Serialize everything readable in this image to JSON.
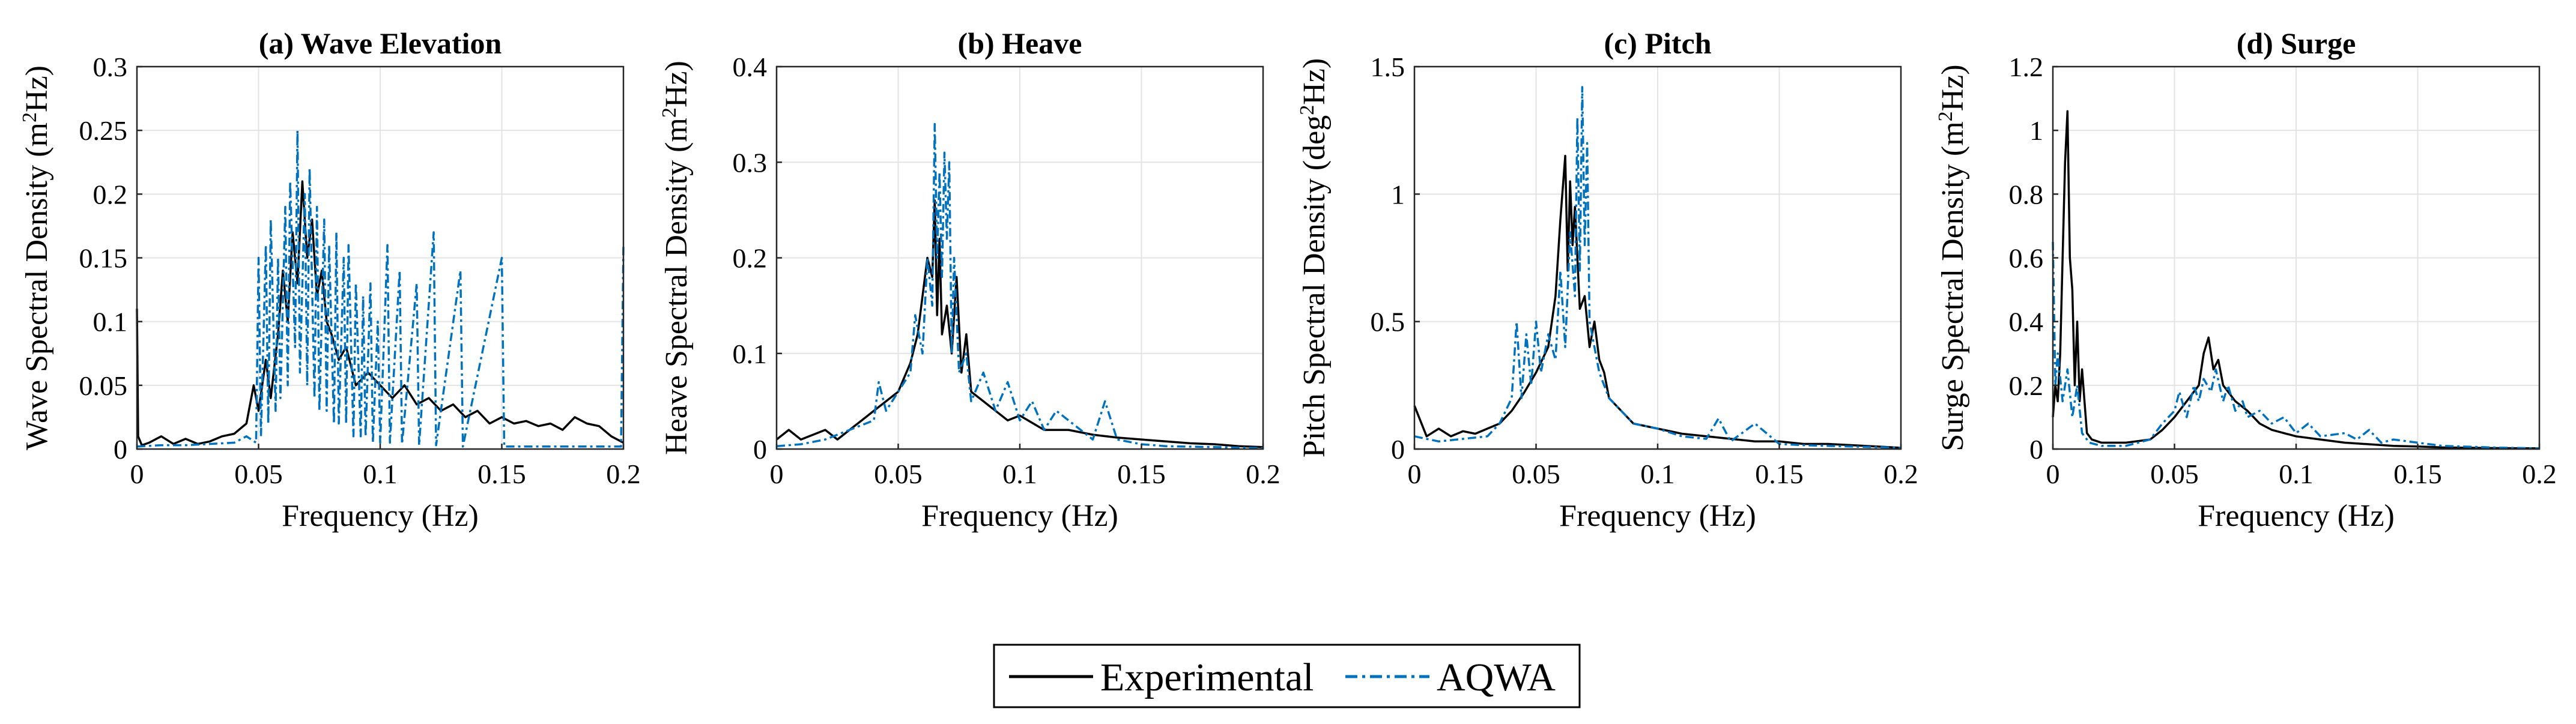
{
  "figure": {
    "legend": {
      "entries": [
        {
          "label": "Experimental",
          "color": "#000000",
          "style": "solid"
        },
        {
          "label": "AQWA",
          "color": "#0072BD",
          "style": "dash-dot"
        }
      ]
    }
  },
  "chart_data": [
    {
      "type": "line",
      "title": "(a) Wave Elevation",
      "xlabel": "Frequency (Hz)",
      "ylabel_main": "Wave Spectral Density (m",
      "ylabel_sup": "2",
      "ylabel_end": "Hz)",
      "xlim": [
        0,
        0.2
      ],
      "ylim": [
        0,
        0.3
      ],
      "xticks": [
        0,
        0.05,
        0.1,
        0.15,
        0.2
      ],
      "xtick_labels": [
        "0",
        "0.05",
        "0.1",
        "0.15",
        "0.2"
      ],
      "yticks": [
        0,
        0.05,
        0.1,
        0.15,
        0.2,
        0.25,
        0.3
      ],
      "ytick_labels": [
        "0",
        "0.05",
        "0.1",
        "0.15",
        "0.2",
        "0.25",
        "0.3"
      ],
      "grid": true,
      "series": [
        {
          "name": "Experimental",
          "color": "#000000",
          "x": [
            0,
            0.0005,
            0.002,
            0.005,
            0.01,
            0.015,
            0.02,
            0.025,
            0.03,
            0.035,
            0.04,
            0.045,
            0.048,
            0.05,
            0.053,
            0.055,
            0.058,
            0.06,
            0.062,
            0.064,
            0.066,
            0.068,
            0.07,
            0.072,
            0.074,
            0.076,
            0.078,
            0.08,
            0.083,
            0.086,
            0.09,
            0.095,
            0.1,
            0.105,
            0.11,
            0.115,
            0.12,
            0.125,
            0.13,
            0.135,
            0.14,
            0.145,
            0.15,
            0.155,
            0.16,
            0.165,
            0.17,
            0.175,
            0.18,
            0.185,
            0.19,
            0.195,
            0.2
          ],
          "y": [
            0.11,
            0.01,
            0.003,
            0.005,
            0.01,
            0.004,
            0.008,
            0.004,
            0.006,
            0.01,
            0.012,
            0.02,
            0.05,
            0.03,
            0.07,
            0.04,
            0.09,
            0.14,
            0.1,
            0.17,
            0.13,
            0.21,
            0.15,
            0.18,
            0.12,
            0.14,
            0.1,
            0.09,
            0.07,
            0.08,
            0.05,
            0.06,
            0.05,
            0.04,
            0.05,
            0.035,
            0.04,
            0.03,
            0.035,
            0.025,
            0.03,
            0.02,
            0.025,
            0.02,
            0.022,
            0.018,
            0.02,
            0.015,
            0.025,
            0.02,
            0.018,
            0.01,
            0.005
          ]
        },
        {
          "name": "AQWA",
          "color": "#0072BD",
          "x": [
            0,
            0.01,
            0.02,
            0.03,
            0.04,
            0.045,
            0.049,
            0.05,
            0.051,
            0.053,
            0.054,
            0.055,
            0.057,
            0.058,
            0.059,
            0.061,
            0.062,
            0.063,
            0.065,
            0.066,
            0.067,
            0.069,
            0.07,
            0.071,
            0.073,
            0.074,
            0.075,
            0.077,
            0.078,
            0.079,
            0.081,
            0.082,
            0.083,
            0.085,
            0.086,
            0.087,
            0.089,
            0.09,
            0.092,
            0.093,
            0.094,
            0.096,
            0.097,
            0.099,
            0.1,
            0.103,
            0.104,
            0.108,
            0.109,
            0.115,
            0.116,
            0.122,
            0.123,
            0.133,
            0.134,
            0.15,
            0.151,
            0.17,
            0.199,
            0.2
          ],
          "y": [
            0.002,
            0.003,
            0.003,
            0.004,
            0.005,
            0.01,
            0.005,
            0.15,
            0.01,
            0.16,
            0.02,
            0.18,
            0.03,
            0.15,
            0.04,
            0.19,
            0.05,
            0.21,
            0.08,
            0.25,
            0.06,
            0.2,
            0.05,
            0.22,
            0.04,
            0.19,
            0.03,
            0.18,
            0.03,
            0.16,
            0.02,
            0.17,
            0.02,
            0.15,
            0.02,
            0.16,
            0.01,
            0.13,
            0.01,
            0.12,
            0.01,
            0.13,
            0.005,
            0.1,
            0.005,
            0.16,
            0.005,
            0.14,
            0.004,
            0.13,
            0.003,
            0.17,
            0.003,
            0.14,
            0.002,
            0.15,
            0.002,
            0.002,
            0.002,
            0.16
          ]
        }
      ]
    },
    {
      "type": "line",
      "title": "(b) Heave",
      "xlabel": "Frequency (Hz)",
      "ylabel_main": "Heave Spectral Density (m",
      "ylabel_sup": "2",
      "ylabel_end": "Hz)",
      "xlim": [
        0,
        0.2
      ],
      "ylim": [
        0,
        0.4
      ],
      "xticks": [
        0,
        0.05,
        0.1,
        0.15,
        0.2
      ],
      "xtick_labels": [
        "0",
        "0.05",
        "0.1",
        "0.15",
        "0.2"
      ],
      "yticks": [
        0,
        0.1,
        0.2,
        0.3,
        0.4
      ],
      "ytick_labels": [
        "0",
        "0.1",
        "0.2",
        "0.3",
        "0.4"
      ],
      "grid": true,
      "series": [
        {
          "name": "Experimental",
          "color": "#000000",
          "x": [
            0,
            0.005,
            0.01,
            0.015,
            0.02,
            0.025,
            0.03,
            0.035,
            0.04,
            0.045,
            0.05,
            0.055,
            0.058,
            0.06,
            0.062,
            0.064,
            0.065,
            0.066,
            0.067,
            0.068,
            0.07,
            0.072,
            0.074,
            0.076,
            0.078,
            0.08,
            0.085,
            0.09,
            0.095,
            0.1,
            0.11,
            0.12,
            0.13,
            0.14,
            0.15,
            0.16,
            0.17,
            0.18,
            0.19,
            0.2
          ],
          "y": [
            0.01,
            0.02,
            0.01,
            0.015,
            0.02,
            0.01,
            0.02,
            0.03,
            0.04,
            0.05,
            0.06,
            0.09,
            0.12,
            0.16,
            0.2,
            0.18,
            0.26,
            0.14,
            0.22,
            0.12,
            0.15,
            0.1,
            0.18,
            0.08,
            0.12,
            0.06,
            0.05,
            0.04,
            0.03,
            0.035,
            0.02,
            0.02,
            0.015,
            0.012,
            0.01,
            0.008,
            0.006,
            0.005,
            0.003,
            0.002
          ]
        },
        {
          "name": "AQWA",
          "color": "#0072BD",
          "x": [
            0,
            0.01,
            0.02,
            0.03,
            0.04,
            0.042,
            0.045,
            0.05,
            0.055,
            0.057,
            0.06,
            0.062,
            0.064,
            0.065,
            0.066,
            0.067,
            0.068,
            0.069,
            0.07,
            0.071,
            0.072,
            0.073,
            0.075,
            0.078,
            0.08,
            0.085,
            0.09,
            0.095,
            0.1,
            0.105,
            0.11,
            0.115,
            0.12,
            0.13,
            0.135,
            0.14,
            0.15,
            0.16,
            0.18,
            0.2
          ],
          "y": [
            0.003,
            0.005,
            0.01,
            0.02,
            0.03,
            0.07,
            0.04,
            0.06,
            0.08,
            0.14,
            0.1,
            0.2,
            0.15,
            0.34,
            0.2,
            0.29,
            0.18,
            0.31,
            0.22,
            0.3,
            0.1,
            0.2,
            0.08,
            0.1,
            0.05,
            0.08,
            0.04,
            0.07,
            0.03,
            0.05,
            0.02,
            0.04,
            0.03,
            0.01,
            0.05,
            0.01,
            0.005,
            0.003,
            0.002,
            0.001
          ]
        }
      ]
    },
    {
      "type": "line",
      "title": "(c) Pitch",
      "xlabel": "Frequency (Hz)",
      "ylabel_main": "Pitch Spectral Density (deg",
      "ylabel_sup": "2",
      "ylabel_end": "Hz)",
      "xlim": [
        0,
        0.2
      ],
      "ylim": [
        0,
        1.5
      ],
      "xticks": [
        0,
        0.05,
        0.1,
        0.15,
        0.2
      ],
      "xtick_labels": [
        "0",
        "0.05",
        "0.1",
        "0.15",
        "0.2"
      ],
      "yticks": [
        0,
        0.5,
        1,
        1.5
      ],
      "ytick_labels": [
        "0",
        "0.5",
        "1",
        "1.5"
      ],
      "grid": true,
      "series": [
        {
          "name": "Experimental",
          "color": "#000000",
          "x": [
            0,
            0.005,
            0.01,
            0.015,
            0.02,
            0.025,
            0.03,
            0.035,
            0.04,
            0.045,
            0.05,
            0.055,
            0.058,
            0.06,
            0.062,
            0.063,
            0.064,
            0.065,
            0.066,
            0.067,
            0.068,
            0.07,
            0.072,
            0.074,
            0.076,
            0.078,
            0.08,
            0.085,
            0.09,
            0.1,
            0.11,
            0.12,
            0.13,
            0.14,
            0.15,
            0.16,
            0.17,
            0.18,
            0.19,
            0.2
          ],
          "y": [
            0.17,
            0.05,
            0.08,
            0.05,
            0.07,
            0.06,
            0.08,
            0.1,
            0.15,
            0.22,
            0.3,
            0.4,
            0.6,
            0.9,
            1.15,
            0.7,
            1.05,
            0.8,
            0.95,
            0.75,
            0.55,
            0.6,
            0.4,
            0.5,
            0.35,
            0.3,
            0.2,
            0.15,
            0.1,
            0.08,
            0.06,
            0.05,
            0.04,
            0.03,
            0.03,
            0.02,
            0.02,
            0.015,
            0.01,
            0.005
          ]
        },
        {
          "name": "AQWA",
          "color": "#0072BD",
          "x": [
            0,
            0.01,
            0.02,
            0.03,
            0.035,
            0.04,
            0.042,
            0.044,
            0.046,
            0.048,
            0.05,
            0.052,
            0.055,
            0.058,
            0.06,
            0.062,
            0.064,
            0.066,
            0.067,
            0.068,
            0.069,
            0.07,
            0.071,
            0.072,
            0.074,
            0.076,
            0.08,
            0.085,
            0.09,
            0.1,
            0.11,
            0.12,
            0.125,
            0.13,
            0.14,
            0.15,
            0.16,
            0.18,
            0.2
          ],
          "y": [
            0.05,
            0.03,
            0.04,
            0.05,
            0.1,
            0.2,
            0.5,
            0.2,
            0.45,
            0.25,
            0.5,
            0.3,
            0.45,
            0.35,
            0.7,
            0.4,
            0.85,
            0.6,
            1.3,
            0.7,
            1.42,
            0.8,
            1.2,
            0.5,
            0.4,
            0.3,
            0.2,
            0.15,
            0.1,
            0.08,
            0.05,
            0.04,
            0.12,
            0.03,
            0.1,
            0.02,
            0.015,
            0.01,
            0.005
          ]
        }
      ]
    },
    {
      "type": "line",
      "title": "(d) Surge",
      "xlabel": "Frequency (Hz)",
      "ylabel_main": "Surge Spectral Density (m",
      "ylabel_sup": "2",
      "ylabel_end": "Hz)",
      "xlim": [
        0,
        0.2
      ],
      "ylim": [
        0,
        1.2
      ],
      "xticks": [
        0,
        0.05,
        0.1,
        0.15,
        0.2
      ],
      "xtick_labels": [
        "0",
        "0.05",
        "0.1",
        "0.15",
        "0.2"
      ],
      "yticks": [
        0,
        0.2,
        0.4,
        0.6,
        0.8,
        1,
        1.2
      ],
      "ytick_labels": [
        "0",
        "0.2",
        "0.4",
        "0.6",
        "0.8",
        "1",
        "1.2"
      ],
      "grid": true,
      "series": [
        {
          "name": "Experimental",
          "color": "#000000",
          "x": [
            0,
            0.001,
            0.002,
            0.003,
            0.004,
            0.005,
            0.006,
            0.007,
            0.008,
            0.009,
            0.01,
            0.011,
            0.012,
            0.014,
            0.016,
            0.02,
            0.03,
            0.04,
            0.045,
            0.05,
            0.055,
            0.06,
            0.062,
            0.064,
            0.066,
            0.068,
            0.07,
            0.075,
            0.08,
            0.085,
            0.09,
            0.1,
            0.11,
            0.12,
            0.13,
            0.14,
            0.15,
            0.16,
            0.18,
            0.2
          ],
          "y": [
            0.1,
            0.2,
            0.15,
            0.3,
            0.6,
            0.9,
            1.06,
            0.6,
            0.5,
            0.2,
            0.4,
            0.15,
            0.25,
            0.05,
            0.03,
            0.02,
            0.02,
            0.03,
            0.06,
            0.1,
            0.15,
            0.2,
            0.3,
            0.35,
            0.25,
            0.28,
            0.2,
            0.15,
            0.12,
            0.08,
            0.06,
            0.04,
            0.03,
            0.02,
            0.015,
            0.01,
            0.008,
            0.005,
            0.003,
            0.002
          ]
        },
        {
          "name": "AQWA",
          "color": "#0072BD",
          "x": [
            0,
            0.001,
            0.002,
            0.004,
            0.006,
            0.008,
            0.01,
            0.012,
            0.015,
            0.02,
            0.03,
            0.04,
            0.045,
            0.05,
            0.052,
            0.055,
            0.058,
            0.06,
            0.062,
            0.065,
            0.067,
            0.07,
            0.072,
            0.075,
            0.078,
            0.08,
            0.085,
            0.09,
            0.095,
            0.1,
            0.105,
            0.11,
            0.12,
            0.125,
            0.13,
            0.135,
            0.14,
            0.15,
            0.16,
            0.18,
            0.2
          ],
          "y": [
            0.65,
            0.2,
            0.3,
            0.15,
            0.25,
            0.1,
            0.2,
            0.05,
            0.02,
            0.01,
            0.01,
            0.03,
            0.08,
            0.12,
            0.18,
            0.1,
            0.2,
            0.15,
            0.22,
            0.18,
            0.25,
            0.15,
            0.2,
            0.12,
            0.15,
            0.1,
            0.12,
            0.08,
            0.1,
            0.05,
            0.08,
            0.04,
            0.05,
            0.03,
            0.06,
            0.02,
            0.03,
            0.02,
            0.01,
            0.005,
            0.002
          ]
        }
      ]
    }
  ]
}
